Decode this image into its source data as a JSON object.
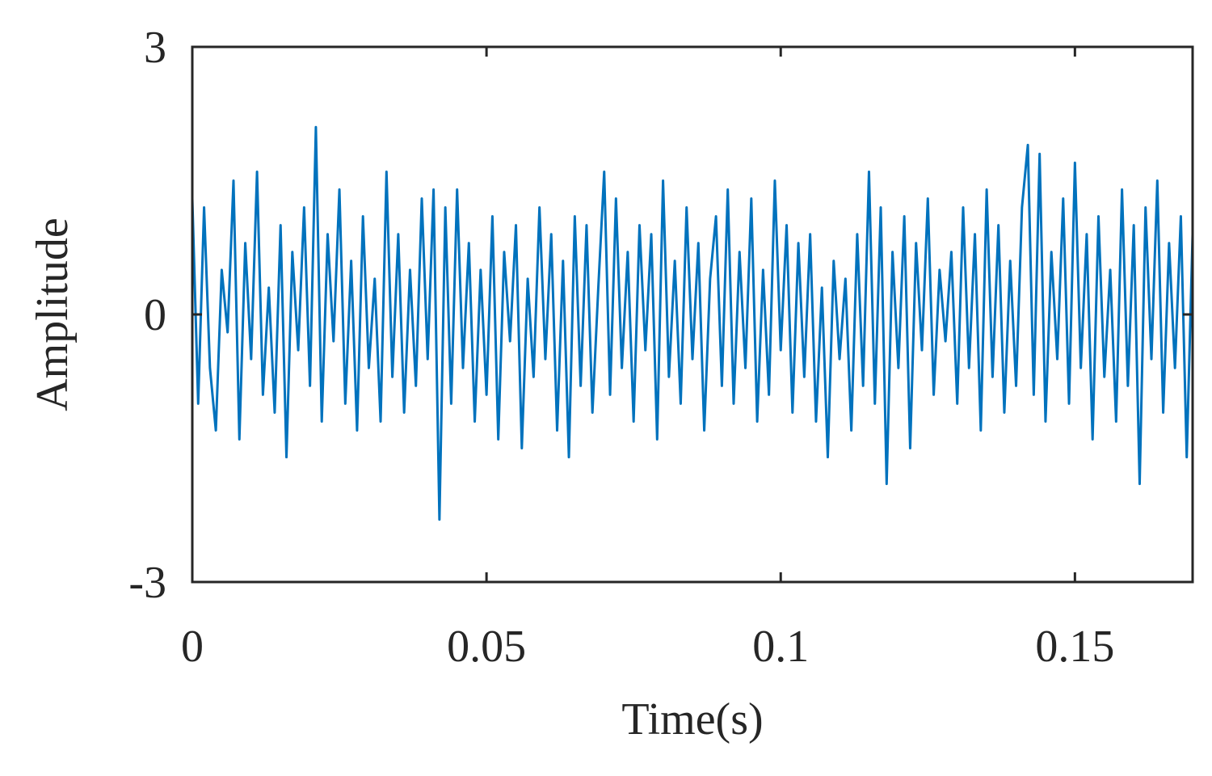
{
  "chart_data": {
    "type": "line",
    "xlabel": "Time(s)",
    "ylabel": "Amplitude",
    "xlim": [
      0,
      0.17
    ],
    "ylim": [
      -3,
      3
    ],
    "xticks": [
      0,
      0.05,
      0.1,
      0.15
    ],
    "yticks": [
      -3,
      0,
      3
    ],
    "grid": false,
    "x": [
      0,
      0.001,
      0.002,
      0.003,
      0.004,
      0.005,
      0.006,
      0.007,
      0.008,
      0.009,
      0.01,
      0.011,
      0.012,
      0.013,
      0.014,
      0.015,
      0.016,
      0.017,
      0.018,
      0.019,
      0.02,
      0.021,
      0.022,
      0.023,
      0.024,
      0.025,
      0.026,
      0.027,
      0.028,
      0.029,
      0.03,
      0.031,
      0.032,
      0.033,
      0.034,
      0.035,
      0.036,
      0.037,
      0.038,
      0.039,
      0.04,
      0.041,
      0.042,
      0.043,
      0.044,
      0.045,
      0.046,
      0.047,
      0.048,
      0.049,
      0.05,
      0.051,
      0.052,
      0.053,
      0.054,
      0.055,
      0.056,
      0.057,
      0.058,
      0.059,
      0.06,
      0.061,
      0.062,
      0.063,
      0.064,
      0.065,
      0.066,
      0.067,
      0.068,
      0.069,
      0.07,
      0.071,
      0.072,
      0.073,
      0.074,
      0.075,
      0.076,
      0.077,
      0.078,
      0.079,
      0.08,
      0.081,
      0.082,
      0.083,
      0.084,
      0.085,
      0.086,
      0.087,
      0.088,
      0.089,
      0.09,
      0.091,
      0.092,
      0.093,
      0.094,
      0.095,
      0.096,
      0.097,
      0.098,
      0.099,
      0.1,
      0.101,
      0.102,
      0.103,
      0.104,
      0.105,
      0.106,
      0.107,
      0.108,
      0.109,
      0.11,
      0.111,
      0.112,
      0.113,
      0.114,
      0.115,
      0.116,
      0.117,
      0.118,
      0.119,
      0.12,
      0.121,
      0.122,
      0.123,
      0.124,
      0.125,
      0.126,
      0.127,
      0.128,
      0.129,
      0.13,
      0.131,
      0.132,
      0.133,
      0.134,
      0.135,
      0.136,
      0.137,
      0.138,
      0.139,
      0.14,
      0.141,
      0.142,
      0.143,
      0.144,
      0.145,
      0.146,
      0.147,
      0.148,
      0.149,
      0.15,
      0.151,
      0.152,
      0.153,
      0.154,
      0.155,
      0.156,
      0.157,
      0.158,
      0.159,
      0.16,
      0.161,
      0.162,
      0.163,
      0.164,
      0.165,
      0.166,
      0.167,
      0.168,
      0.169,
      0.17
    ],
    "series": [
      {
        "color": "#0072bd",
        "values": [
          1.3,
          -1.0,
          1.2,
          -0.6,
          -1.3,
          0.5,
          -0.2,
          1.5,
          -1.4,
          0.8,
          -0.5,
          1.6,
          -0.9,
          0.3,
          -1.1,
          1.0,
          -1.6,
          0.7,
          -0.4,
          1.2,
          -0.8,
          2.1,
          -1.2,
          0.9,
          -0.3,
          1.4,
          -1.0,
          0.6,
          -1.3,
          1.1,
          -0.6,
          0.4,
          -1.2,
          1.6,
          -0.7,
          0.9,
          -1.1,
          0.5,
          -0.8,
          1.3,
          -0.5,
          1.4,
          -2.3,
          1.2,
          -1.0,
          1.4,
          -0.6,
          0.8,
          -1.2,
          0.5,
          -0.9,
          1.1,
          -1.4,
          0.7,
          -0.3,
          1.0,
          -1.5,
          0.4,
          -0.7,
          1.2,
          -0.5,
          0.9,
          -1.3,
          0.6,
          -1.6,
          1.1,
          -0.8,
          1.0,
          -1.1,
          0.3,
          1.6,
          -0.9,
          1.3,
          -0.6,
          0.7,
          -1.2,
          1.0,
          -0.4,
          0.9,
          -1.4,
          1.5,
          -0.7,
          0.6,
          -1.0,
          1.2,
          -0.5,
          0.8,
          -1.3,
          0.4,
          1.1,
          -0.8,
          1.4,
          -1.0,
          0.7,
          -0.6,
          1.3,
          -1.2,
          0.5,
          -0.9,
          1.5,
          -0.4,
          1.0,
          -1.1,
          0.8,
          -0.7,
          0.9,
          -1.2,
          0.3,
          -1.6,
          0.6,
          -0.5,
          0.4,
          -1.3,
          0.9,
          -0.8,
          1.6,
          -1.0,
          1.2,
          -1.9,
          0.7,
          -0.6,
          1.1,
          -1.5,
          0.8,
          -0.4,
          1.3,
          -0.9,
          0.5,
          -0.3,
          0.7,
          -1.0,
          1.2,
          -0.6,
          0.9,
          -1.3,
          1.4,
          -0.7,
          1.0,
          -1.1,
          0.6,
          -0.8,
          1.2,
          1.9,
          -0.9,
          1.8,
          -1.2,
          0.7,
          -0.5,
          1.3,
          -1.0,
          1.7,
          -0.6,
          0.9,
          -1.4,
          1.1,
          -0.7,
          0.5,
          -1.2,
          1.4,
          -0.8,
          1.0,
          -1.9,
          1.2,
          -0.5,
          1.5,
          -1.1,
          0.8,
          -0.6,
          1.1,
          -1.6,
          0.9
        ]
      }
    ]
  }
}
